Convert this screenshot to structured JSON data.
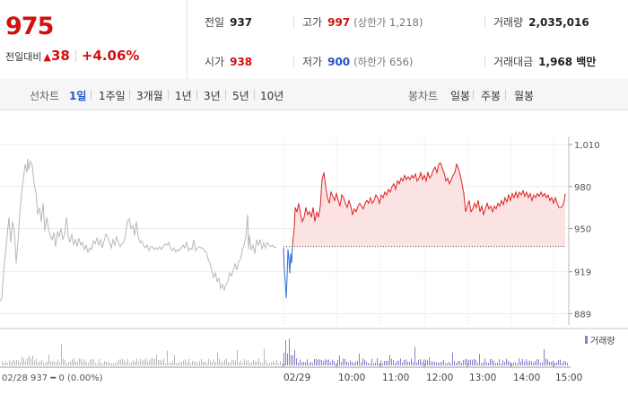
{
  "summary": {
    "price": "975",
    "change_label": "전일대비",
    "change_abs": "38",
    "change_pct": "+4.06%",
    "prev_close": {
      "label": "전일",
      "value": "937"
    },
    "open": {
      "label": "시가",
      "value": "938"
    },
    "high": {
      "label": "고가",
      "value": "997",
      "sub": "(상한가 1,218)"
    },
    "low": {
      "label": "저가",
      "value": "900",
      "sub": "(하한가 656)"
    },
    "volume": {
      "label": "거래량",
      "value": "2,035,016"
    },
    "amount": {
      "label": "거래대금",
      "value": "1,968 백만"
    }
  },
  "tabs": {
    "line_label": "선차트",
    "line_items": [
      "1일",
      "1주일",
      "3개월",
      "1년",
      "3년",
      "5년",
      "10년"
    ],
    "selected": "1일",
    "candle_label": "봉차트",
    "candle_items": [
      "일봉",
      "주봉",
      "월봉"
    ]
  },
  "colors": {
    "up": "#e02020",
    "down": "#2a6fd6",
    "prev": "#b8b8b8",
    "fill": "#fbe3e3",
    "volume": "#8a7fc9"
  },
  "chart_data": {
    "type": "line",
    "y_ticks": [
      "1,010",
      "980",
      "950",
      "919",
      "889"
    ],
    "ylim": [
      886,
      1012
    ],
    "baseline": 937,
    "x_ticks": [
      "02/29",
      "10:00",
      "11:00",
      "12:00",
      "13:00",
      "14:00",
      "15:00"
    ],
    "prev_day_caption": "02/28  937 ━ 0 (0.00%)",
    "volume_legend": "거래량",
    "prev_series": [
      [
        0,
        898
      ],
      [
        2,
        900
      ],
      [
        3,
        910
      ],
      [
        5,
        925
      ],
      [
        8,
        945
      ],
      [
        10,
        958
      ],
      [
        12,
        940
      ],
      [
        14,
        955
      ],
      [
        16,
        948
      ],
      [
        18,
        925
      ],
      [
        20,
        940
      ],
      [
        22,
        960
      ],
      [
        24,
        975
      ],
      [
        26,
        985
      ],
      [
        28,
        996
      ],
      [
        30,
        990
      ],
      [
        31,
        1000
      ],
      [
        32,
        992
      ],
      [
        34,
        998
      ],
      [
        36,
        995
      ],
      [
        38,
        982
      ],
      [
        40,
        976
      ],
      [
        42,
        960
      ],
      [
        44,
        965
      ],
      [
        46,
        955
      ],
      [
        48,
        968
      ],
      [
        50,
        948
      ],
      [
        52,
        958
      ],
      [
        54,
        950
      ],
      [
        56,
        945
      ],
      [
        58,
        942
      ],
      [
        60,
        947
      ],
      [
        62,
        937
      ],
      [
        64,
        948
      ],
      [
        66,
        944
      ],
      [
        68,
        950
      ],
      [
        70,
        942
      ],
      [
        72,
        946
      ],
      [
        74,
        958
      ],
      [
        76,
        945
      ],
      [
        78,
        940
      ],
      [
        80,
        946
      ],
      [
        82,
        938
      ],
      [
        84,
        942
      ],
      [
        86,
        937
      ],
      [
        88,
        943
      ],
      [
        90,
        938
      ],
      [
        92,
        940
      ],
      [
        94,
        935
      ],
      [
        96,
        938
      ],
      [
        98,
        933
      ],
      [
        100,
        936
      ],
      [
        102,
        935
      ],
      [
        104,
        941
      ],
      [
        106,
        939
      ],
      [
        108,
        943
      ],
      [
        110,
        938
      ],
      [
        112,
        942
      ],
      [
        114,
        936
      ],
      [
        116,
        941
      ],
      [
        118,
        946
      ],
      [
        120,
        944
      ],
      [
        122,
        940
      ],
      [
        124,
        936
      ],
      [
        126,
        942
      ],
      [
        128,
        938
      ],
      [
        130,
        944
      ],
      [
        132,
        940
      ],
      [
        134,
        937
      ],
      [
        136,
        939
      ],
      [
        138,
        940
      ],
      [
        140,
        946
      ],
      [
        142,
        955
      ],
      [
        144,
        957
      ],
      [
        146,
        950
      ],
      [
        148,
        952
      ],
      [
        150,
        945
      ],
      [
        152,
        955
      ],
      [
        154,
        944
      ],
      [
        156,
        940
      ],
      [
        158,
        941
      ],
      [
        160,
        938
      ],
      [
        162,
        936
      ],
      [
        164,
        938
      ],
      [
        166,
        934
      ],
      [
        168,
        937
      ],
      [
        170,
        937
      ],
      [
        172,
        935
      ],
      [
        174,
        936
      ],
      [
        176,
        935
      ],
      [
        178,
        937
      ],
      [
        180,
        935
      ],
      [
        182,
        937
      ],
      [
        184,
        939
      ],
      [
        186,
        938
      ],
      [
        188,
        940
      ],
      [
        190,
        936
      ],
      [
        192,
        934
      ],
      [
        194,
        936
      ],
      [
        196,
        933
      ],
      [
        198,
        935
      ],
      [
        200,
        934
      ],
      [
        202,
        936
      ],
      [
        204,
        938
      ],
      [
        206,
        936
      ],
      [
        208,
        940
      ],
      [
        210,
        934
      ],
      [
        212,
        936
      ],
      [
        214,
        935
      ],
      [
        216,
        942
      ],
      [
        218,
        934
      ],
      [
        220,
        936
      ],
      [
        222,
        937
      ],
      [
        224,
        936
      ],
      [
        226,
        936
      ],
      [
        228,
        934
      ],
      [
        230,
        933
      ],
      [
        232,
        928
      ],
      [
        234,
        925
      ],
      [
        236,
        920
      ],
      [
        238,
        915
      ],
      [
        240,
        918
      ],
      [
        242,
        912
      ],
      [
        244,
        914
      ],
      [
        246,
        907
      ],
      [
        248,
        910
      ],
      [
        250,
        906
      ],
      [
        252,
        910
      ],
      [
        254,
        912
      ],
      [
        256,
        918
      ],
      [
        258,
        916
      ],
      [
        260,
        920
      ],
      [
        262,
        925
      ],
      [
        264,
        920
      ],
      [
        266,
        926
      ],
      [
        268,
        928
      ],
      [
        270,
        934
      ],
      [
        272,
        938
      ],
      [
        274,
        944
      ],
      [
        276,
        960
      ],
      [
        277,
        935
      ],
      [
        278,
        945
      ],
      [
        280,
        935
      ],
      [
        282,
        938
      ],
      [
        284,
        932
      ],
      [
        286,
        942
      ],
      [
        288,
        938
      ],
      [
        290,
        942
      ],
      [
        292,
        935
      ],
      [
        294,
        940
      ],
      [
        296,
        936
      ],
      [
        298,
        940
      ],
      [
        300,
        938
      ],
      [
        302,
        937
      ],
      [
        304,
        938
      ],
      [
        306,
        936
      ],
      [
        308,
        937
      ]
    ],
    "today_down": [
      [
        316,
        936
      ],
      [
        317,
        920
      ],
      [
        318,
        912
      ],
      [
        319,
        900
      ],
      [
        320,
        915
      ],
      [
        321,
        935
      ],
      [
        322,
        928
      ],
      [
        323,
        918
      ],
      [
        324,
        932
      ],
      [
        325,
        925
      ],
      [
        326,
        938
      ]
    ],
    "today_up": [
      [
        326,
        938
      ],
      [
        328,
        950
      ],
      [
        329,
        965
      ],
      [
        331,
        962
      ],
      [
        333,
        968
      ],
      [
        335,
        960
      ],
      [
        337,
        955
      ],
      [
        339,
        958
      ],
      [
        341,
        965
      ],
      [
        343,
        960
      ],
      [
        345,
        962
      ],
      [
        347,
        958
      ],
      [
        349,
        965
      ],
      [
        351,
        955
      ],
      [
        353,
        962
      ],
      [
        355,
        958
      ],
      [
        357,
        966
      ],
      [
        359,
        985
      ],
      [
        361,
        990
      ],
      [
        363,
        980
      ],
      [
        365,
        972
      ],
      [
        367,
        968
      ],
      [
        369,
        976
      ],
      [
        371,
        973
      ],
      [
        373,
        970
      ],
      [
        375,
        975
      ],
      [
        377,
        970
      ],
      [
        379,
        966
      ],
      [
        381,
        974
      ],
      [
        383,
        972
      ],
      [
        385,
        968
      ],
      [
        387,
        965
      ],
      [
        389,
        970
      ],
      [
        391,
        966
      ],
      [
        393,
        960
      ],
      [
        395,
        964
      ],
      [
        397,
        962
      ],
      [
        399,
        966
      ],
      [
        401,
        968
      ],
      [
        403,
        966
      ],
      [
        405,
        964
      ],
      [
        407,
        968
      ],
      [
        409,
        970
      ],
      [
        411,
        968
      ],
      [
        413,
        972
      ],
      [
        415,
        968
      ],
      [
        417,
        970
      ],
      [
        419,
        974
      ],
      [
        421,
        972
      ],
      [
        423,
        968
      ],
      [
        425,
        974
      ],
      [
        427,
        972
      ],
      [
        429,
        976
      ],
      [
        431,
        974
      ],
      [
        433,
        978
      ],
      [
        435,
        976
      ],
      [
        437,
        980
      ],
      [
        439,
        982
      ],
      [
        441,
        978
      ],
      [
        443,
        984
      ],
      [
        445,
        982
      ],
      [
        447,
        986
      ],
      [
        449,
        984
      ],
      [
        451,
        988
      ],
      [
        453,
        985
      ],
      [
        455,
        987
      ],
      [
        457,
        985
      ],
      [
        459,
        988
      ],
      [
        461,
        986
      ],
      [
        463,
        989
      ],
      [
        465,
        984
      ],
      [
        467,
        986
      ],
      [
        469,
        990
      ],
      [
        471,
        985
      ],
      [
        473,
        988
      ],
      [
        475,
        984
      ],
      [
        477,
        990
      ],
      [
        479,
        986
      ],
      [
        481,
        988
      ],
      [
        483,
        992
      ],
      [
        485,
        994
      ],
      [
        487,
        990
      ],
      [
        489,
        996
      ],
      [
        491,
        997
      ],
      [
        493,
        993
      ],
      [
        495,
        990
      ],
      [
        497,
        984
      ],
      [
        499,
        986
      ],
      [
        501,
        982
      ],
      [
        503,
        985
      ],
      [
        505,
        988
      ],
      [
        507,
        990
      ],
      [
        509,
        996
      ],
      [
        511,
        993
      ],
      [
        513,
        988
      ],
      [
        515,
        982
      ],
      [
        517,
        975
      ],
      [
        519,
        962
      ],
      [
        521,
        966
      ],
      [
        523,
        970
      ],
      [
        525,
        962
      ],
      [
        527,
        964
      ],
      [
        529,
        968
      ],
      [
        531,
        965
      ],
      [
        533,
        970
      ],
      [
        535,
        962
      ],
      [
        537,
        966
      ],
      [
        539,
        960
      ],
      [
        541,
        964
      ],
      [
        543,
        968
      ],
      [
        545,
        964
      ],
      [
        547,
        966
      ],
      [
        549,
        962
      ],
      [
        551,
        966
      ],
      [
        553,
        964
      ],
      [
        555,
        968
      ],
      [
        557,
        966
      ],
      [
        559,
        970
      ],
      [
        561,
        967
      ],
      [
        563,
        972
      ],
      [
        565,
        969
      ],
      [
        567,
        974
      ],
      [
        569,
        970
      ],
      [
        571,
        975
      ],
      [
        573,
        972
      ],
      [
        575,
        976
      ],
      [
        577,
        972
      ],
      [
        579,
        976
      ],
      [
        581,
        974
      ],
      [
        583,
        977
      ],
      [
        585,
        973
      ],
      [
        587,
        976
      ],
      [
        589,
        972
      ],
      [
        591,
        975
      ],
      [
        593,
        970
      ],
      [
        595,
        974
      ],
      [
        597,
        972
      ],
      [
        599,
        975
      ],
      [
        601,
        973
      ],
      [
        603,
        976
      ],
      [
        605,
        973
      ],
      [
        607,
        975
      ],
      [
        609,
        972
      ],
      [
        611,
        974
      ],
      [
        613,
        970
      ],
      [
        615,
        972
      ],
      [
        617,
        968
      ],
      [
        619,
        972
      ],
      [
        621,
        968
      ],
      [
        623,
        965
      ],
      [
        625,
        965
      ],
      [
        627,
        966
      ],
      [
        629,
        970
      ],
      [
        630,
        975
      ]
    ]
  }
}
